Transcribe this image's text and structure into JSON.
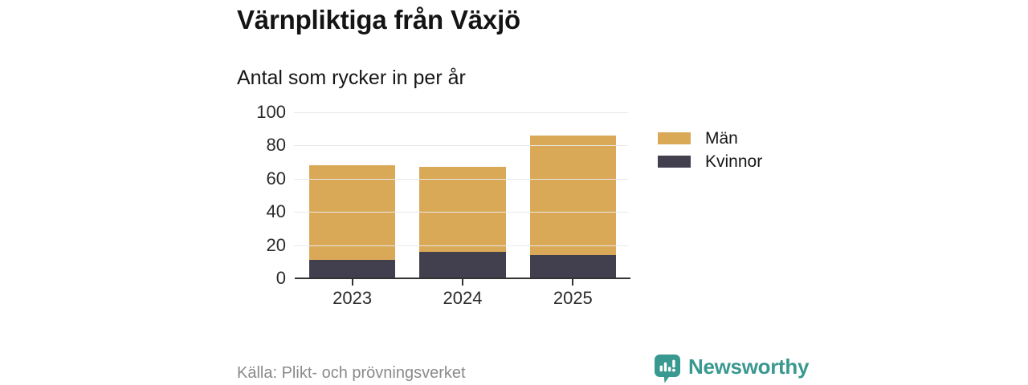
{
  "header": {
    "title": "Värnpliktiga från Växjö",
    "subtitle": "Antal som rycker in per år"
  },
  "chart_data": {
    "type": "bar",
    "stacked": true,
    "title": "Värnpliktiga från Växjö",
    "subtitle": "Antal som rycker in per år",
    "categories": [
      "2023",
      "2024",
      "2025"
    ],
    "series": [
      {
        "name": "Kvinnor",
        "values": [
          11,
          16,
          14
        ],
        "color": "#423F4E"
      },
      {
        "name": "Män",
        "values": [
          57,
          51,
          72
        ],
        "color": "#DAA958"
      }
    ],
    "stack_totals": [
      68,
      67,
      86
    ],
    "xlabel": "",
    "ylabel": "",
    "ylim": [
      0,
      100
    ],
    "yticks": [
      0,
      20,
      40,
      60,
      80,
      100
    ],
    "grid": true,
    "legend_position": "right"
  },
  "legend": {
    "items": [
      {
        "label": "Män",
        "color": "#DAA958"
      },
      {
        "label": "Kvinnor",
        "color": "#423F4E"
      }
    ]
  },
  "footer": {
    "source": "Källa: Plikt- och prövningsverket"
  },
  "brand": {
    "name": "Newsworthy",
    "color": "#39988F"
  },
  "colors": {
    "background": "#FFFFFF",
    "grid": "#E8E8E8",
    "axis": "#333333",
    "men": "#DAA958",
    "women": "#423F4E",
    "source_text": "#8A8A8A",
    "brand_teal": "#39988F"
  }
}
